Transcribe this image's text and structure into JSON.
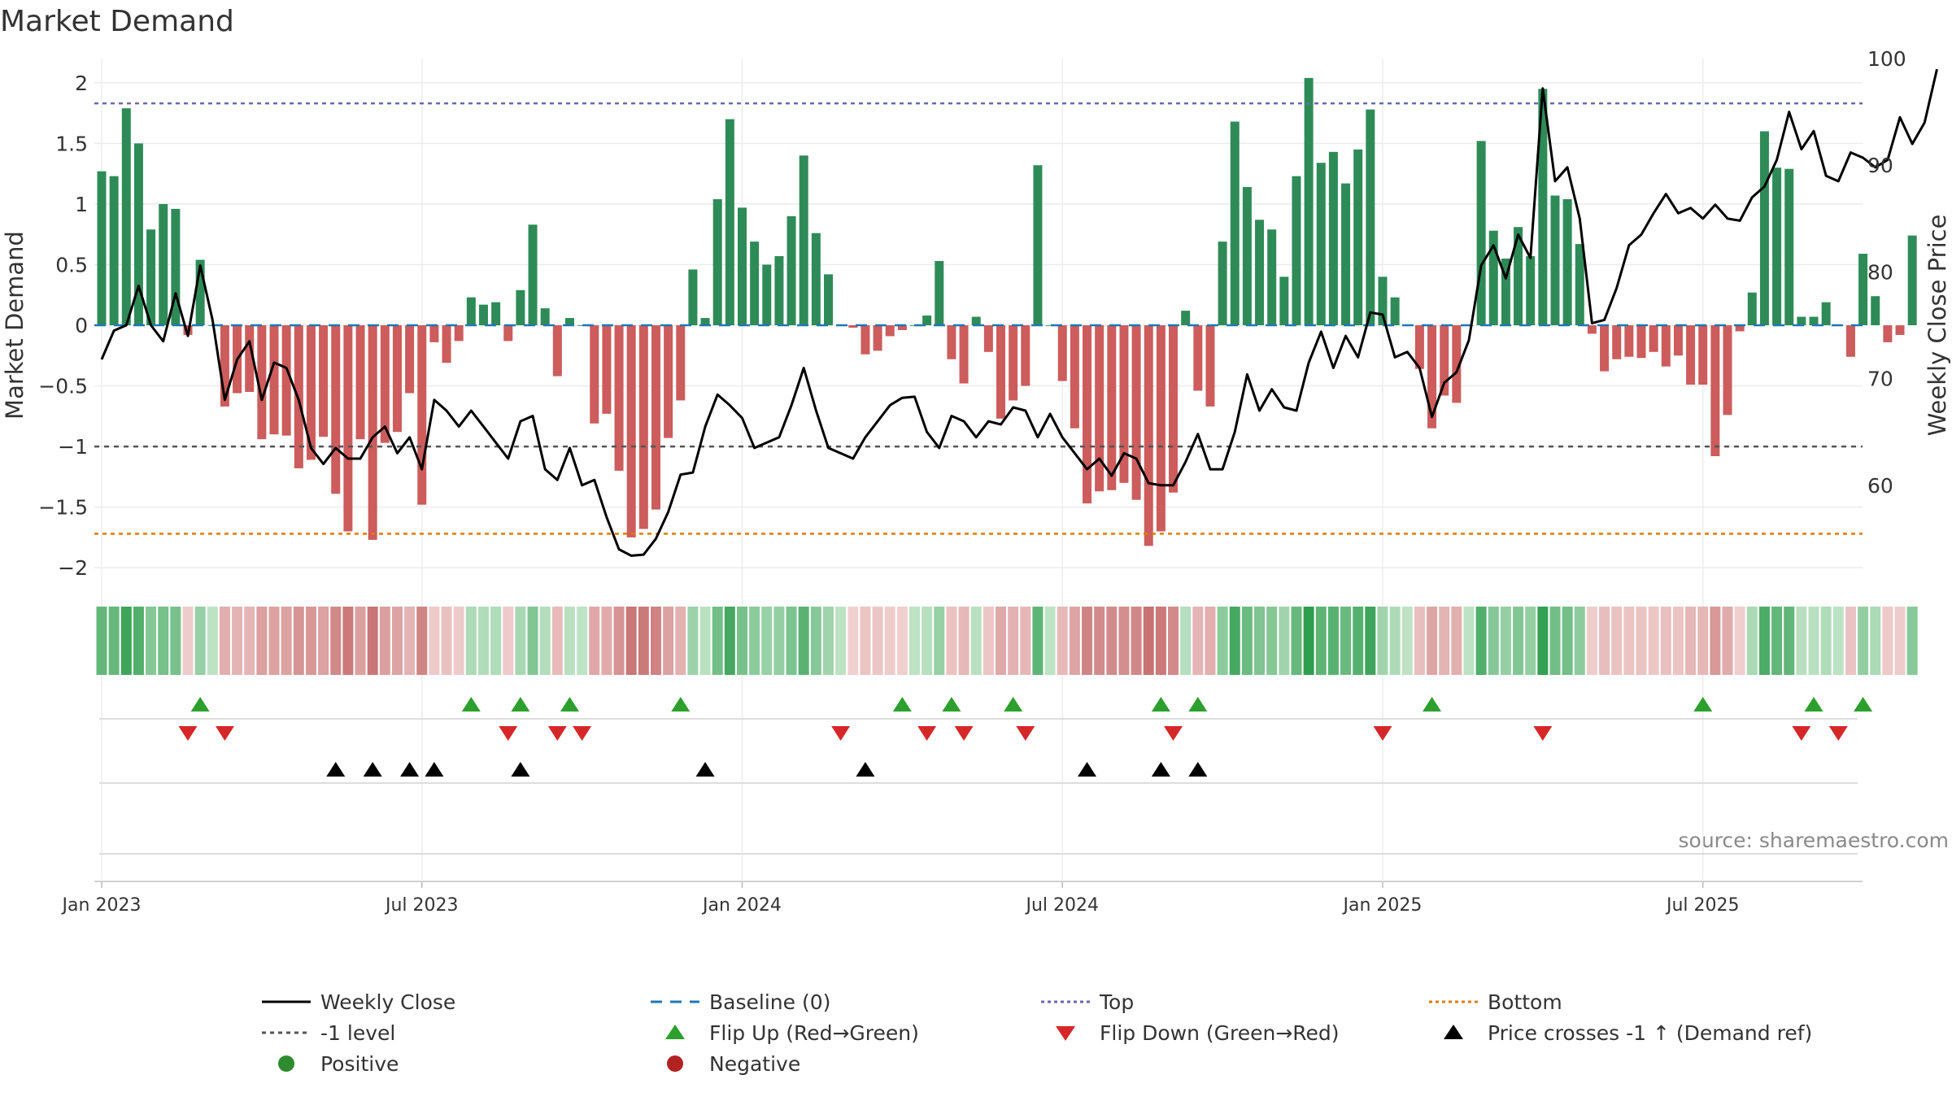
{
  "chart_data": {
    "type": "bar",
    "title": "Market Demand",
    "ylabel_left": "Market Demand",
    "ylabel_right": "Weekly Close Price",
    "ylim_left": [
      -2.2,
      2.2
    ],
    "ylim_right": [
      50,
      100
    ],
    "left_ticks": [
      2,
      1.5,
      1,
      0.5,
      0,
      -0.5,
      -1,
      -1.5,
      -2
    ],
    "left_tick_labels": [
      "2",
      "1.5",
      "1",
      "0.5",
      "0",
      "−0.5",
      "−1",
      "−1.5",
      "−2"
    ],
    "right_ticks": [
      100,
      90,
      80,
      70,
      60
    ],
    "right_tick_labels": [
      "100",
      "90",
      "80",
      "70",
      "60"
    ],
    "x_tick_labels": [
      "Jan 2023",
      "Jul 2023",
      "Jan 2024",
      "Jul 2024",
      "Jan 2025",
      "Jul 2025"
    ],
    "x_tick_positions": [
      0,
      26,
      52,
      78,
      104,
      130
    ],
    "top_level": 1.83,
    "bottom_level": -1.72,
    "minus_one_level": -1.0,
    "colors": {
      "positive_bar": "#2e8b57",
      "negative_bar": "#cd5c5c",
      "price_line": "#000000",
      "baseline": "#1f77b4",
      "top": "#6a6aaa",
      "bottom": "#e07b00",
      "minus_one": "#555555",
      "flip_up": "#2ca02c",
      "flip_down": "#d62728",
      "cross": "#000000",
      "positive_dot": "#2e8b2e",
      "negative_dot": "#b22222"
    },
    "series": [
      {
        "name": "Market Demand",
        "values": [
          1.27,
          1.23,
          1.79,
          1.5,
          0.79,
          1.0,
          0.96,
          -0.08,
          0.54,
          0.0,
          -0.67,
          -0.56,
          -0.55,
          -0.94,
          -0.9,
          -0.91,
          -1.18,
          -1.11,
          -0.92,
          -1.39,
          -1.7,
          -0.94,
          -1.77,
          -0.97,
          -0.88,
          -0.56,
          -1.48,
          -0.14,
          -0.31,
          -0.13,
          0.23,
          0.17,
          0.19,
          -0.13,
          0.29,
          0.83,
          0.14,
          -0.42,
          0.06,
          0.0,
          -0.81,
          -0.73,
          -1.2,
          -1.75,
          -1.68,
          -1.52,
          -0.93,
          -0.62,
          0.46,
          0.06,
          1.04,
          1.7,
          0.97,
          0.69,
          0.5,
          0.57,
          0.9,
          1.4,
          0.76,
          0.42,
          0.0,
          -0.02,
          -0.24,
          -0.21,
          -0.09,
          -0.04,
          0.0,
          0.08,
          0.53,
          -0.28,
          -0.48,
          0.07,
          -0.22,
          -0.77,
          -0.62,
          -0.5,
          1.32,
          0.0,
          -0.46,
          -0.85,
          -1.47,
          -1.37,
          -1.36,
          -1.3,
          -1.44,
          -1.82,
          -1.7,
          -1.38,
          0.12,
          -0.54,
          -0.67,
          0.69,
          1.68,
          1.14,
          0.87,
          0.79,
          0.4,
          1.23,
          2.04,
          1.34,
          1.43,
          1.17,
          1.45,
          1.78,
          0.4,
          0.23,
          0.0,
          -0.36,
          -0.85,
          -0.58,
          -0.64,
          0.0,
          1.52,
          0.78,
          0.55,
          0.81,
          0.57,
          1.95,
          1.07,
          1.04,
          0.67,
          -0.07,
          -0.38,
          -0.28,
          -0.26,
          -0.27,
          -0.22,
          -0.34,
          -0.25,
          -0.49,
          -0.49,
          -1.08,
          -0.74,
          -0.05,
          0.27,
          1.6,
          1.3,
          1.29,
          0.07,
          0.07,
          0.19,
          0.0,
          -0.26,
          0.59,
          0.24,
          -0.14,
          -0.08,
          0.74
        ]
      },
      {
        "name": "Weekly Close",
        "values": [
          71.8,
          74.5,
          75.0,
          78.7,
          75.0,
          73.5,
          78.0,
          74.0,
          80.6,
          75.5,
          68.0,
          71.8,
          73.5,
          68.0,
          71.5,
          71.0,
          68.0,
          63.5,
          62.0,
          63.5,
          62.5,
          62.5,
          64.5,
          65.5,
          63.0,
          64.5,
          61.5,
          68.0,
          67.0,
          65.5,
          67.0,
          65.5,
          64.0,
          62.5,
          66.0,
          66.5,
          61.5,
          60.5,
          63.5,
          60.0,
          60.5,
          57.0,
          54.0,
          53.4,
          53.5,
          55.0,
          57.5,
          61.0,
          61.2,
          65.5,
          68.5,
          67.5,
          66.3,
          63.5,
          64.0,
          64.5,
          67.5,
          71.0,
          67.0,
          63.5,
          63.0,
          62.5,
          64.5,
          66.0,
          67.5,
          68.2,
          68.3,
          65.0,
          63.5,
          66.5,
          66.0,
          64.5,
          66.0,
          65.7,
          67.3,
          67.0,
          64.5,
          66.7,
          64.5,
          63.0,
          61.5,
          62.5,
          60.9,
          63.0,
          62.5,
          60.2,
          60.0,
          60.0,
          62.2,
          64.8,
          61.5,
          61.5,
          65.0,
          70.4,
          67.0,
          69.0,
          67.3,
          67.0,
          71.5,
          74.4,
          71.0,
          74.0,
          72.0,
          76.2,
          76.0,
          72.0,
          72.5,
          71.0,
          66.4,
          69.6,
          70.6,
          73.6,
          80.6,
          82.5,
          79.4,
          83.5,
          81.3,
          97.2,
          88.5,
          89.8,
          85.0,
          75.2,
          75.5,
          78.5,
          82.5,
          83.5,
          85.5,
          87.3,
          85.5,
          86.0,
          85.0,
          86.3,
          85.0,
          84.8,
          87.0,
          88.0,
          90.5,
          95.0,
          91.5,
          93.2,
          89.0,
          88.5,
          91.2,
          90.7,
          89.8,
          90.5,
          94.5,
          92.0,
          94.0,
          99.0
        ]
      }
    ],
    "flip_up_weeks": [
      8,
      30,
      34,
      38,
      47,
      65,
      69,
      74,
      86,
      89,
      108,
      130,
      139,
      143
    ],
    "flip_down_weeks": [
      7,
      10,
      33,
      37,
      39,
      60,
      67,
      70,
      75,
      87,
      104,
      117,
      138,
      141
    ],
    "price_cross_weeks": [
      19,
      22,
      25,
      27,
      34,
      49,
      62,
      80,
      86,
      89
    ],
    "source": "source: sharemaestro.com",
    "legend": [
      {
        "label": "Weekly Close",
        "kind": "line",
        "color": "#000000",
        "dash": ""
      },
      {
        "label": "Baseline (0)",
        "kind": "line",
        "color": "#1f77b4",
        "dash": "14,10"
      },
      {
        "label": "Top",
        "kind": "line",
        "color": "#6a6aaa",
        "dash": "4,4"
      },
      {
        "label": "Bottom",
        "kind": "line",
        "color": "#e07b00",
        "dash": "4,4"
      },
      {
        "label": "-1 level",
        "kind": "line",
        "color": "#555555",
        "dash": "5,5"
      },
      {
        "label": "Flip Up (Red→Green)",
        "kind": "tri-up",
        "color": "#2ca02c",
        "dash": ""
      },
      {
        "label": "Flip Down (Green→Red)",
        "kind": "tri-down",
        "color": "#d62728",
        "dash": ""
      },
      {
        "label": "Price crosses -1 ↑ (Demand ref)",
        "kind": "tri-up",
        "color": "#000000",
        "dash": ""
      },
      {
        "label": "Positive",
        "kind": "dot",
        "color": "#2e8b2e",
        "dash": ""
      },
      {
        "label": "Negative",
        "kind": "dot",
        "color": "#b22222",
        "dash": ""
      }
    ]
  }
}
